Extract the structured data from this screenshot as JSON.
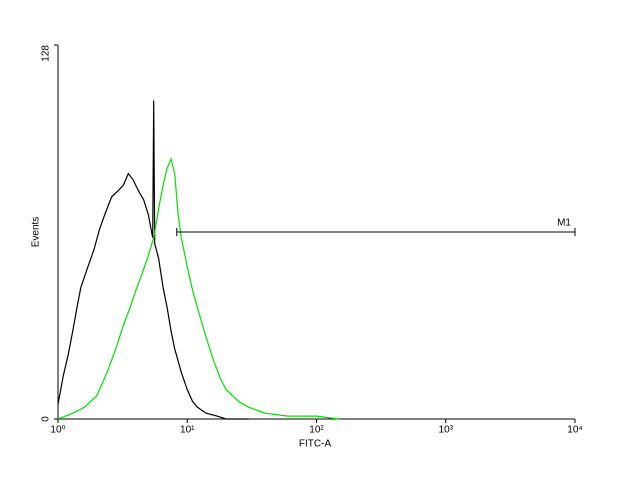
{
  "chart_data": {
    "type": "histogram-log",
    "x_label": "FITC-A",
    "y_label": "Events",
    "xlim": [
      1,
      10000
    ],
    "ylim": [
      0,
      128
    ],
    "log_x": true,
    "xticks": [
      {
        "value": 1,
        "label": "10⁰"
      },
      {
        "value": 10,
        "label": "10¹"
      },
      {
        "value": 100,
        "label": "10²"
      },
      {
        "value": 1000,
        "label": "10³"
      },
      {
        "value": 10000,
        "label": "10⁴"
      }
    ],
    "yticks": [
      0,
      128
    ],
    "series": [
      {
        "color": "#000000",
        "x": [
          1.0,
          1.1,
          1.2,
          1.3,
          1.4,
          1.5,
          1.7,
          1.9,
          2.1,
          2.3,
          2.6,
          2.9,
          3.2,
          3.5,
          3.8,
          4.2,
          4.6,
          5.0,
          5.4,
          5.5,
          5.6,
          6.0,
          6.5,
          7.0,
          7.5,
          8.0,
          9.0,
          10,
          11,
          12,
          14,
          17,
          20,
          30
        ],
        "values": [
          5,
          15,
          22,
          30,
          38,
          45,
          52,
          58,
          65,
          70,
          76,
          78,
          80,
          84,
          82,
          78,
          75,
          70,
          62,
          109,
          60,
          55,
          45,
          38,
          30,
          24,
          16,
          10,
          6,
          4,
          2,
          1,
          0,
          0
        ]
      },
      {
        "color": "#00e000",
        "x": [
          1.0,
          1.3,
          1.6,
          2.0,
          2.4,
          2.8,
          3.2,
          3.6,
          4.0,
          4.5,
          5.0,
          5.5,
          6.0,
          6.5,
          7.0,
          7.5,
          8.0,
          8.5,
          9.0,
          10,
          11,
          12,
          14,
          16,
          18,
          20,
          25,
          30,
          40,
          60,
          100,
          150
        ],
        "values": [
          0,
          2,
          4,
          8,
          16,
          24,
          32,
          38,
          44,
          50,
          56,
          62,
          72,
          80,
          86,
          89,
          84,
          70,
          62,
          52,
          44,
          38,
          28,
          20,
          14,
          10,
          6,
          4,
          2,
          1,
          1,
          0
        ]
      }
    ],
    "marker": {
      "label": "M1",
      "range": [
        8.3,
        10000
      ],
      "y": 64
    }
  }
}
